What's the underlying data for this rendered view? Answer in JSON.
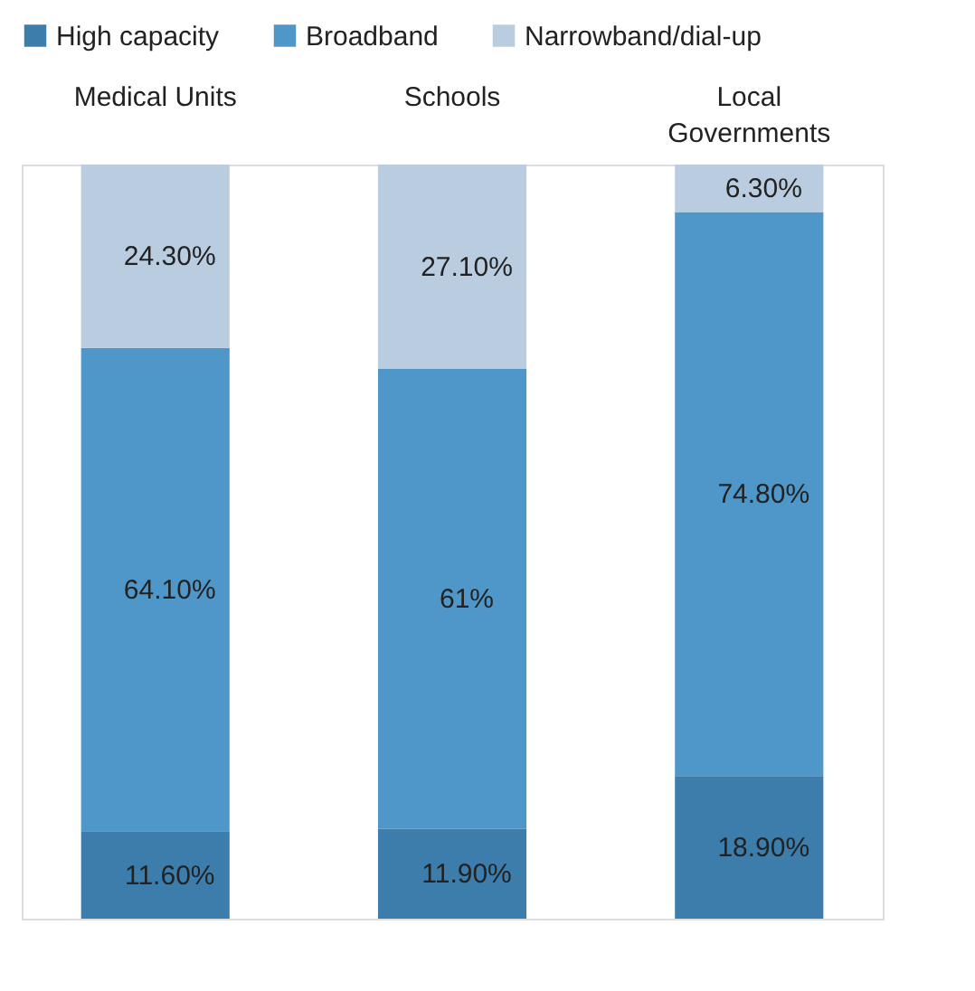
{
  "chart_data": {
    "type": "bar",
    "stacked": true,
    "categories": [
      "Medical Units",
      "Schools",
      "Local Governments"
    ],
    "series": [
      {
        "name": "High capacity",
        "color": "#3d7dab",
        "values": [
          11.6,
          11.9,
          18.9
        ],
        "value_labels": [
          "11.60%",
          "11.90%",
          "18.90%"
        ]
      },
      {
        "name": "Broadband",
        "color": "#4f97c8",
        "values": [
          64.1,
          61,
          74.8
        ],
        "value_labels": [
          "64.10%",
          "61%",
          "74.80%"
        ]
      },
      {
        "name": "Narrowband/dial-up",
        "color": "#b9cce0",
        "values": [
          24.3,
          27.1,
          6.3
        ],
        "value_labels": [
          "24.30%",
          "27.10%",
          "6.30%"
        ]
      }
    ],
    "ylim": [
      0,
      100
    ],
    "legend": "top",
    "tick_labels": "x"
  }
}
